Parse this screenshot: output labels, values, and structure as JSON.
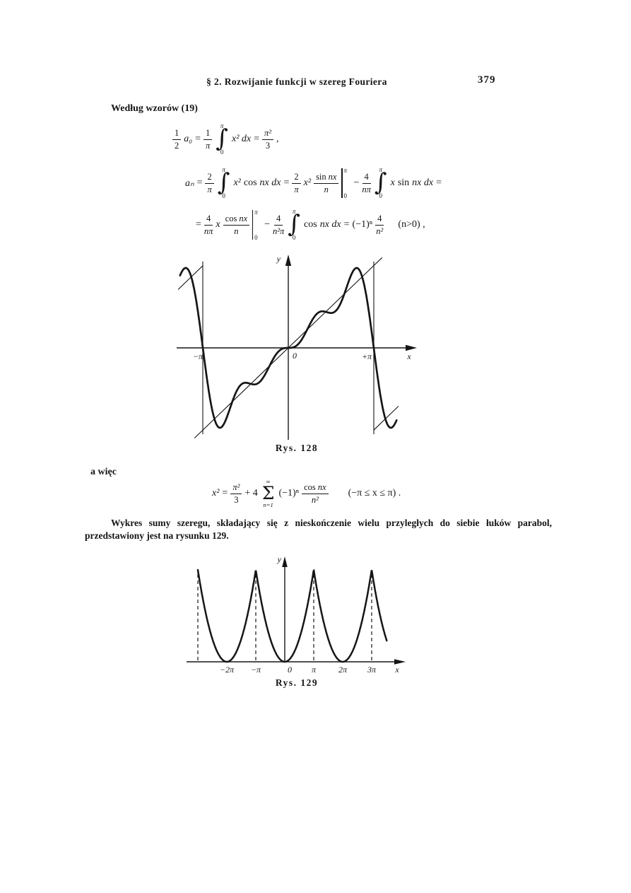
{
  "page": {
    "header": "§ 2. Rozwijanie funkcji w szereg Fouriera",
    "page_number": "379"
  },
  "lead1": "Według wzorów (19)",
  "lead2": "a więc",
  "paragraph": "Wykres sumy szeregu, składający się z nieskończenie wielu przyległych do siebie łuków parabol, przedstawiony jest na rysunku 129.",
  "formulas": {
    "sym": {
      "int": "∫",
      "sum": "Σ"
    },
    "f1": {
      "num1": "1",
      "den1": "2",
      "coef": "a₀",
      "eq1": "=",
      "num2": "1",
      "den2": "π",
      "int_top": "π",
      "int_bot": "0",
      "body": "x² dx",
      "eq2": "=",
      "num3": "π²",
      "den3": "3",
      "tail": ","
    },
    "f2": {
      "lhs": "aₙ",
      "eq1": "=",
      "num1": "2",
      "den1": "π",
      "int1_top": "π",
      "int1_bot": "0",
      "x2a": "x²",
      "cos": "cos",
      "body1": "nx dx",
      "eq2": "=",
      "num2": "2",
      "den2": "π",
      "x2b": "x²",
      "sin1": "sin",
      "nx1": "nx",
      "denn": "n",
      "eval_top": "π",
      "eval_bot": "0",
      "minus": "−",
      "num3": "4",
      "den3": "nπ",
      "int2_top": "π",
      "int2_bot": "0",
      "x": "x",
      "sin2": "sin",
      "body2": "nx dx",
      "eq3": "="
    },
    "f3": {
      "eq1": "=",
      "num1": "4",
      "den1": "nπ",
      "x": "x",
      "cos1": "cos",
      "nx1": "nx",
      "denn": "n",
      "eval_top": "π",
      "eval_bot": "0",
      "minus": "−",
      "num2": "4",
      "den2": "n²π",
      "int_top": "π",
      "int_bot": "0",
      "cos2": "cos",
      "body2": "nx dx",
      "eq2": "=",
      "pow": "(−1)ⁿ",
      "num3": "4",
      "den3": "n²",
      "cond": "(n>0) ,"
    },
    "f4": {
      "lhs": "x²",
      "eq1": "=",
      "num1": "π²",
      "den1": "3",
      "plus": "+ 4",
      "sum_top": "∞",
      "sum_bot": "n=1",
      "pow": "(−1)ⁿ",
      "cos": "cos",
      "nx": "nx",
      "den2": "n²",
      "cond": "(−π ≤ x ≤ π) ."
    }
  },
  "fig128": {
    "caption": "Rys. 128",
    "label_y": "y",
    "label_x": "x",
    "label_origin": "0",
    "label_neg_pi": "−π",
    "label_pos_pi": "+π"
  },
  "fig129": {
    "caption": "Rys. 129",
    "label_y": "y",
    "label_x": "x",
    "ticks": [
      "−2π",
      "−π",
      "0",
      "π",
      "2π",
      "3π"
    ]
  }
}
